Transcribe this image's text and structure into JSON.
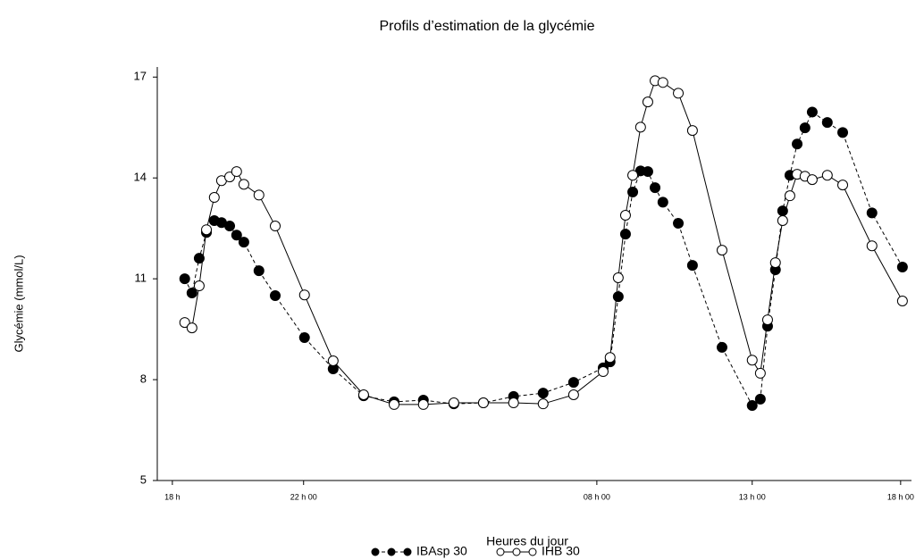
{
  "chart_data": {
    "type": "line",
    "title": "Profils d’estimation de la glycémie",
    "x_label": "Heures du jour",
    "y_label": "Glycémie (mmol/L)",
    "x": [
      0.41,
      0.65,
      0.89,
      1.13,
      1.39,
      1.63,
      1.9,
      2.13,
      2.37,
      2.87,
      3.41,
      4.38,
      5.33,
      6.34,
      7.35,
      8.32,
      9.33,
      10.31,
      11.31,
      12.29,
      13.3,
      14.28,
      14.51,
      14.78,
      15.02,
      15.26,
      15.52,
      15.76,
      16.0,
      16.26,
      16.77,
      17.24,
      18.22,
      19.22,
      19.49,
      19.73,
      19.99,
      20.23,
      20.47,
      20.71,
      20.97,
      21.21,
      21.71,
      22.22,
      23.19,
      24.2
    ],
    "series": [
      {
        "name": "IBAsp 30",
        "color": "#000000",
        "marker_fill": "#000000",
        "line_style": "dashed",
        "values": [
          11.0,
          10.58,
          11.61,
          12.38,
          12.73,
          12.67,
          12.57,
          12.3,
          12.09,
          11.24,
          10.5,
          9.25,
          8.32,
          7.52,
          7.34,
          7.39,
          7.28,
          7.31,
          7.5,
          7.6,
          7.92,
          8.35,
          8.53,
          10.47,
          12.33,
          13.58,
          14.21,
          14.19,
          13.71,
          13.28,
          12.65,
          11.4,
          8.96,
          7.23,
          7.42,
          9.59,
          11.27,
          13.02,
          14.08,
          15.01,
          15.49,
          15.96,
          15.65,
          15.35,
          12.96,
          11.35
        ]
      },
      {
        "name": "IHB 30",
        "color": "#000000",
        "marker_fill": "#ffffff",
        "line_style": "solid",
        "values": [
          9.7,
          9.54,
          10.79,
          12.46,
          13.42,
          13.92,
          14.03,
          14.19,
          13.81,
          13.49,
          12.57,
          10.52,
          8.56,
          7.55,
          7.26,
          7.26,
          7.31,
          7.31,
          7.31,
          7.28,
          7.55,
          8.24,
          8.66,
          11.03,
          12.89,
          14.08,
          15.51,
          16.26,
          16.89,
          16.84,
          16.52,
          15.41,
          11.85,
          8.58,
          8.19,
          9.78,
          11.48,
          12.73,
          13.47,
          14.11,
          14.05,
          13.95,
          14.08,
          13.79,
          11.98,
          10.34
        ]
      }
    ],
    "xlim": [
      -0.5,
      24.5
    ],
    "xticks": [
      {
        "value": 0,
        "label": "18 h"
      },
      {
        "value": 4.35,
        "label": "22 h 00"
      },
      {
        "value": 14.07,
        "label": "08 h 00"
      },
      {
        "value": 19.22,
        "label": "13 h 00"
      },
      {
        "value": 24.14,
        "label": "18 h 00"
      }
    ],
    "ylim": [
      5,
      17.3
    ],
    "yticks": [
      5,
      8,
      11,
      14,
      17
    ],
    "grid": false,
    "legend": "bottom"
  }
}
